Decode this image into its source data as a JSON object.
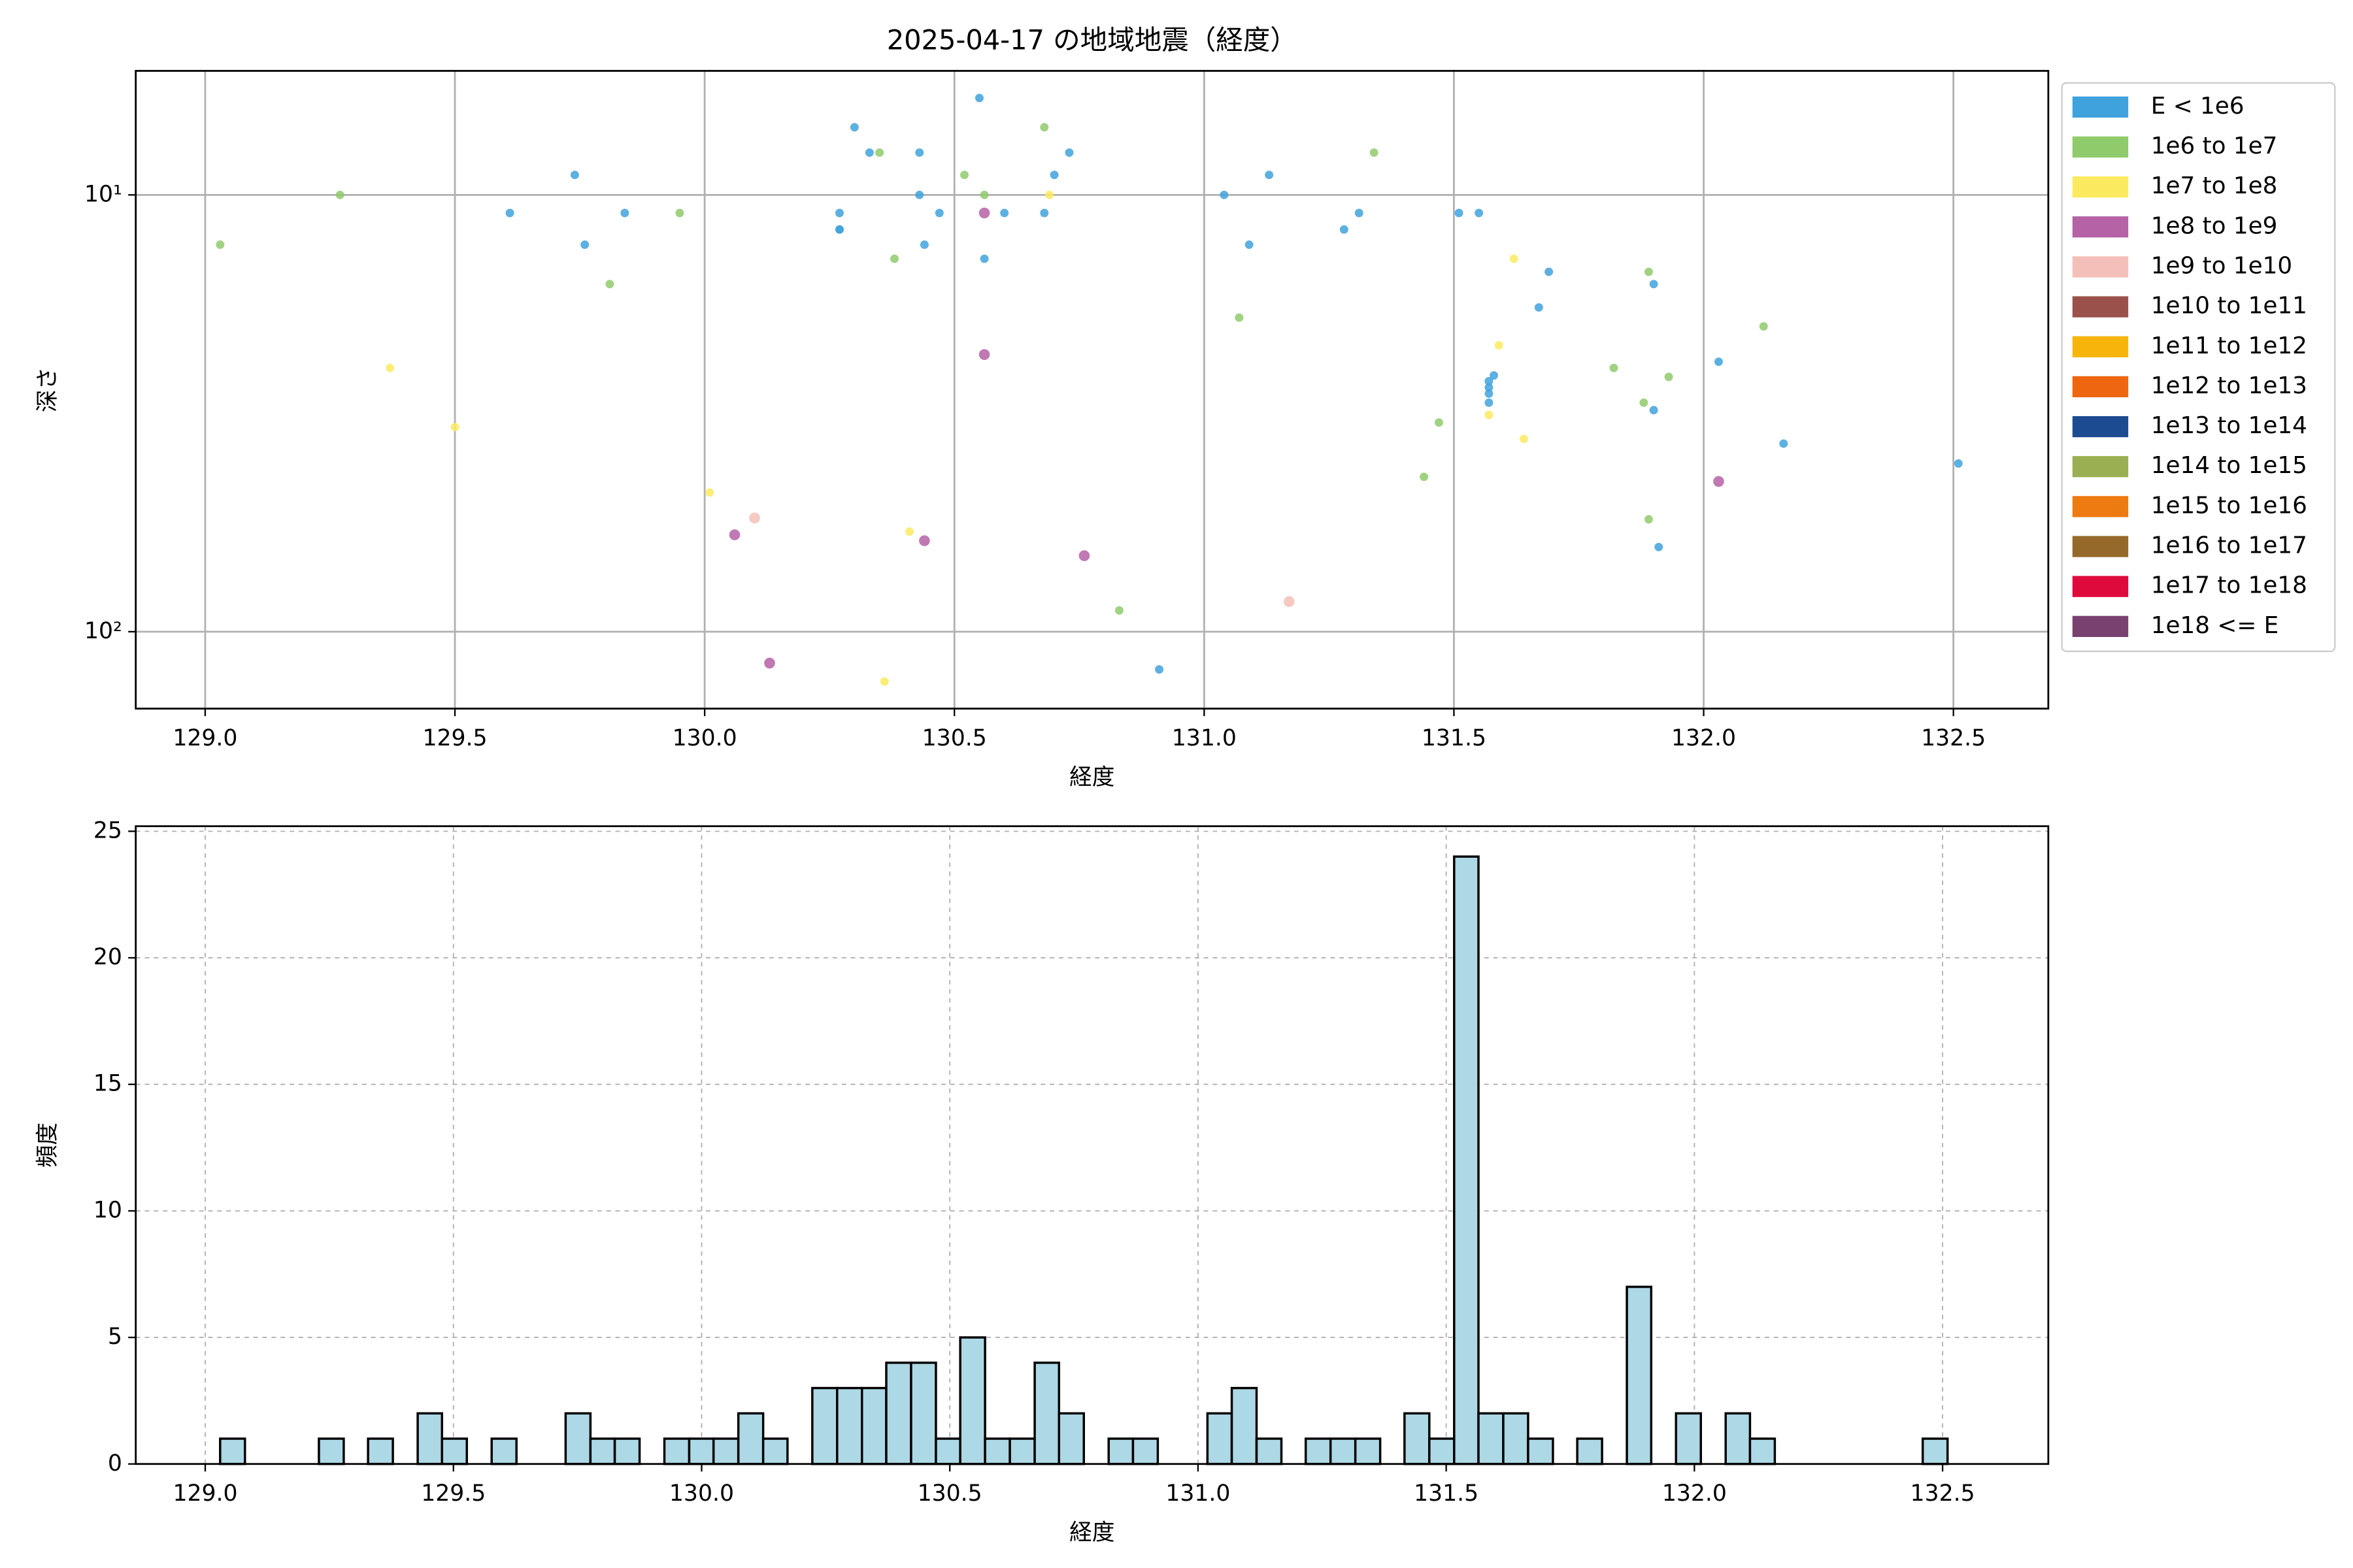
{
  "chart_data": [
    {
      "type": "scatter",
      "title": "2025-04-17 の地域地震（経度）",
      "x_label": "経度",
      "y_label": "深さ",
      "xlim": [
        128.861,
        132.69
      ],
      "ylim": [
        5.2,
        150
      ],
      "y_scale": "log",
      "y_inverted": true,
      "xticks": [
        {
          "value": 129,
          "label": "129.0"
        },
        {
          "value": 129.5,
          "label": "129.5"
        },
        {
          "value": 130,
          "label": "130.0"
        },
        {
          "value": 130.5,
          "label": "130.5"
        },
        {
          "value": 131,
          "label": "131.0"
        },
        {
          "value": 131.5,
          "label": "131.5"
        },
        {
          "value": 132,
          "label": "132.0"
        },
        {
          "value": 132.5,
          "label": "132.5"
        }
      ],
      "yticks": [
        {
          "value": 10,
          "label": "10¹"
        },
        {
          "value": 100,
          "label": "10²"
        }
      ],
      "grid": true,
      "grid_linestyle": "solid",
      "legend": "outside upper right",
      "series": [
        {
          "name": "E < 1e6",
          "color": "#3fa2dd",
          "x": [
            130.3,
            130.33,
            130.43,
            130.55,
            130.73,
            129.74,
            130.7,
            131.13,
            130.43,
            131.04,
            129.61,
            129.84,
            130.27,
            130.47,
            130.6,
            130.68,
            131.31,
            131.51,
            131.55,
            130.27,
            130.27,
            131.28,
            129.76,
            130.44,
            131.09,
            130.56,
            131.69,
            131.9,
            131.67,
            132.03,
            131.58,
            131.57,
            131.57,
            131.57,
            131.57,
            131.9,
            132.16,
            132.51,
            131.91,
            130.91
          ],
          "y": [
            7.0,
            8.0,
            8.0,
            6.0,
            8.0,
            9.0,
            9.0,
            9.0,
            10,
            10,
            11.0,
            11.0,
            11.0,
            11.0,
            11.0,
            11.0,
            11.0,
            11.0,
            11.0,
            12.0,
            12.0,
            12.0,
            13.0,
            13.0,
            13.0,
            14.0,
            15.0,
            16.0,
            18.1,
            24.1,
            25.9,
            26.7,
            27.6,
            28.5,
            29.9,
            31.1,
            37.1,
            41.2,
            64.0,
            122
          ]
        },
        {
          "name": "1e6 to 1e7",
          "color": "#8fca6b",
          "x": [
            130.68,
            130.35,
            131.34,
            130.52,
            129.27,
            130.56,
            129.03,
            129.95,
            130.38,
            131.89,
            129.81,
            131.07,
            132.12,
            131.82,
            131.93,
            131.88,
            131.47,
            131.44,
            131.89,
            130.83
          ],
          "y": [
            7.0,
            8.0,
            8.0,
            9.0,
            10,
            10,
            13.0,
            11.0,
            14.0,
            15.0,
            16.0,
            19.1,
            20.0,
            24.9,
            26.1,
            29.9,
            33.2,
            44.2,
            55.3,
            89.4
          ]
        },
        {
          "name": "1e7 to 1e8",
          "color": "#fbea5f",
          "x": [
            130.69,
            131.62,
            131.59,
            129.37,
            131.57,
            131.64,
            129.5,
            130.01,
            130.41,
            130.36
          ],
          "y": [
            10,
            14.0,
            22.1,
            24.9,
            31.9,
            36.2,
            34.0,
            48.0,
            59.0,
            130
          ]
        },
        {
          "name": "1e8 to 1e9",
          "color": "#b562a6",
          "x": [
            130.56,
            130.56,
            130.06,
            130.44,
            130.76,
            132.03,
            130.13
          ],
          "y": [
            11.0,
            23.2,
            60.0,
            61.9,
            67.0,
            45.3,
            118
          ]
        },
        {
          "name": "1e9 to 1e10",
          "color": "#f4bfb8",
          "x": [
            130.1,
            131.17
          ],
          "y": [
            54.9,
            85.3
          ]
        },
        {
          "name": "1e10 to 1e11",
          "color": "#9a514b",
          "x": [],
          "y": []
        },
        {
          "name": "1e11 to 1e12",
          "color": "#f7b50c",
          "x": [],
          "y": []
        },
        {
          "name": "1e12 to 1e13",
          "color": "#ee6610",
          "x": [],
          "y": []
        },
        {
          "name": "1e13 to 1e14",
          "color": "#1c4b91",
          "x": [],
          "y": []
        },
        {
          "name": "1e14 to 1e15",
          "color": "#9aaf52",
          "x": [],
          "y": []
        },
        {
          "name": "1e15 to 1e16",
          "color": "#ee7a12",
          "x": [],
          "y": []
        },
        {
          "name": "1e16 to 1e17",
          "color": "#95692a",
          "x": [],
          "y": []
        },
        {
          "name": "1e17 to 1e18",
          "color": "#de0a3c",
          "x": [],
          "y": []
        },
        {
          "name": "1e18 <= E",
          "color": "#78416f",
          "x": [],
          "y": []
        }
      ]
    },
    {
      "type": "histogram",
      "x_label": "経度",
      "y_label": "頻度",
      "color": "#add8e6",
      "edgecolor": "#000000",
      "xlim": [
        128.86,
        132.713
      ],
      "ylim": [
        0,
        25.2
      ],
      "xticks": [
        {
          "value": 129,
          "label": "129.0"
        },
        {
          "value": 129.5,
          "label": "129.5"
        },
        {
          "value": 130,
          "label": "130.0"
        },
        {
          "value": 130.5,
          "label": "130.5"
        },
        {
          "value": 131,
          "label": "131.0"
        },
        {
          "value": 131.5,
          "label": "131.5"
        },
        {
          "value": 132,
          "label": "132.0"
        },
        {
          "value": 132.5,
          "label": "132.5"
        }
      ],
      "yticks": [
        0,
        5,
        10,
        15,
        20,
        25
      ],
      "grid": true,
      "grid_linestyle": "dashed",
      "bins": [
        129.03,
        129.08,
        129.129,
        129.179,
        129.229,
        129.279,
        129.328,
        129.378,
        129.428,
        129.477,
        129.527,
        129.577,
        129.627,
        129.676,
        129.726,
        129.776,
        129.825,
        129.875,
        129.925,
        129.975,
        130.024,
        130.074,
        130.124,
        130.173,
        130.223,
        130.273,
        130.323,
        130.372,
        130.422,
        130.472,
        130.521,
        130.571,
        130.621,
        130.671,
        130.72,
        130.77,
        130.82,
        130.869,
        130.919,
        130.969,
        131.019,
        131.068,
        131.118,
        131.168,
        131.217,
        131.267,
        131.317,
        131.367,
        131.416,
        131.466,
        131.516,
        131.565,
        131.615,
        131.665,
        131.715,
        131.764,
        131.814,
        131.864,
        131.913,
        131.963,
        132.013,
        132.063,
        132.112,
        132.162,
        132.212,
        132.261,
        132.311,
        132.361,
        132.411,
        132.46,
        132.51
      ],
      "values": [
        1,
        0,
        0,
        0,
        1,
        0,
        1,
        0,
        2,
        1,
        0,
        1,
        0,
        0,
        2,
        1,
        1,
        0,
        1,
        1,
        1,
        2,
        1,
        0,
        3,
        3,
        3,
        4,
        4,
        1,
        5,
        1,
        1,
        4,
        2,
        0,
        1,
        1,
        0,
        0,
        2,
        3,
        1,
        0,
        1,
        1,
        1,
        0,
        2,
        1,
        24,
        2,
        2,
        1,
        0,
        1,
        0,
        7,
        0,
        2,
        0,
        2,
        1,
        0,
        0,
        0,
        0,
        0,
        0,
        1
      ]
    }
  ]
}
